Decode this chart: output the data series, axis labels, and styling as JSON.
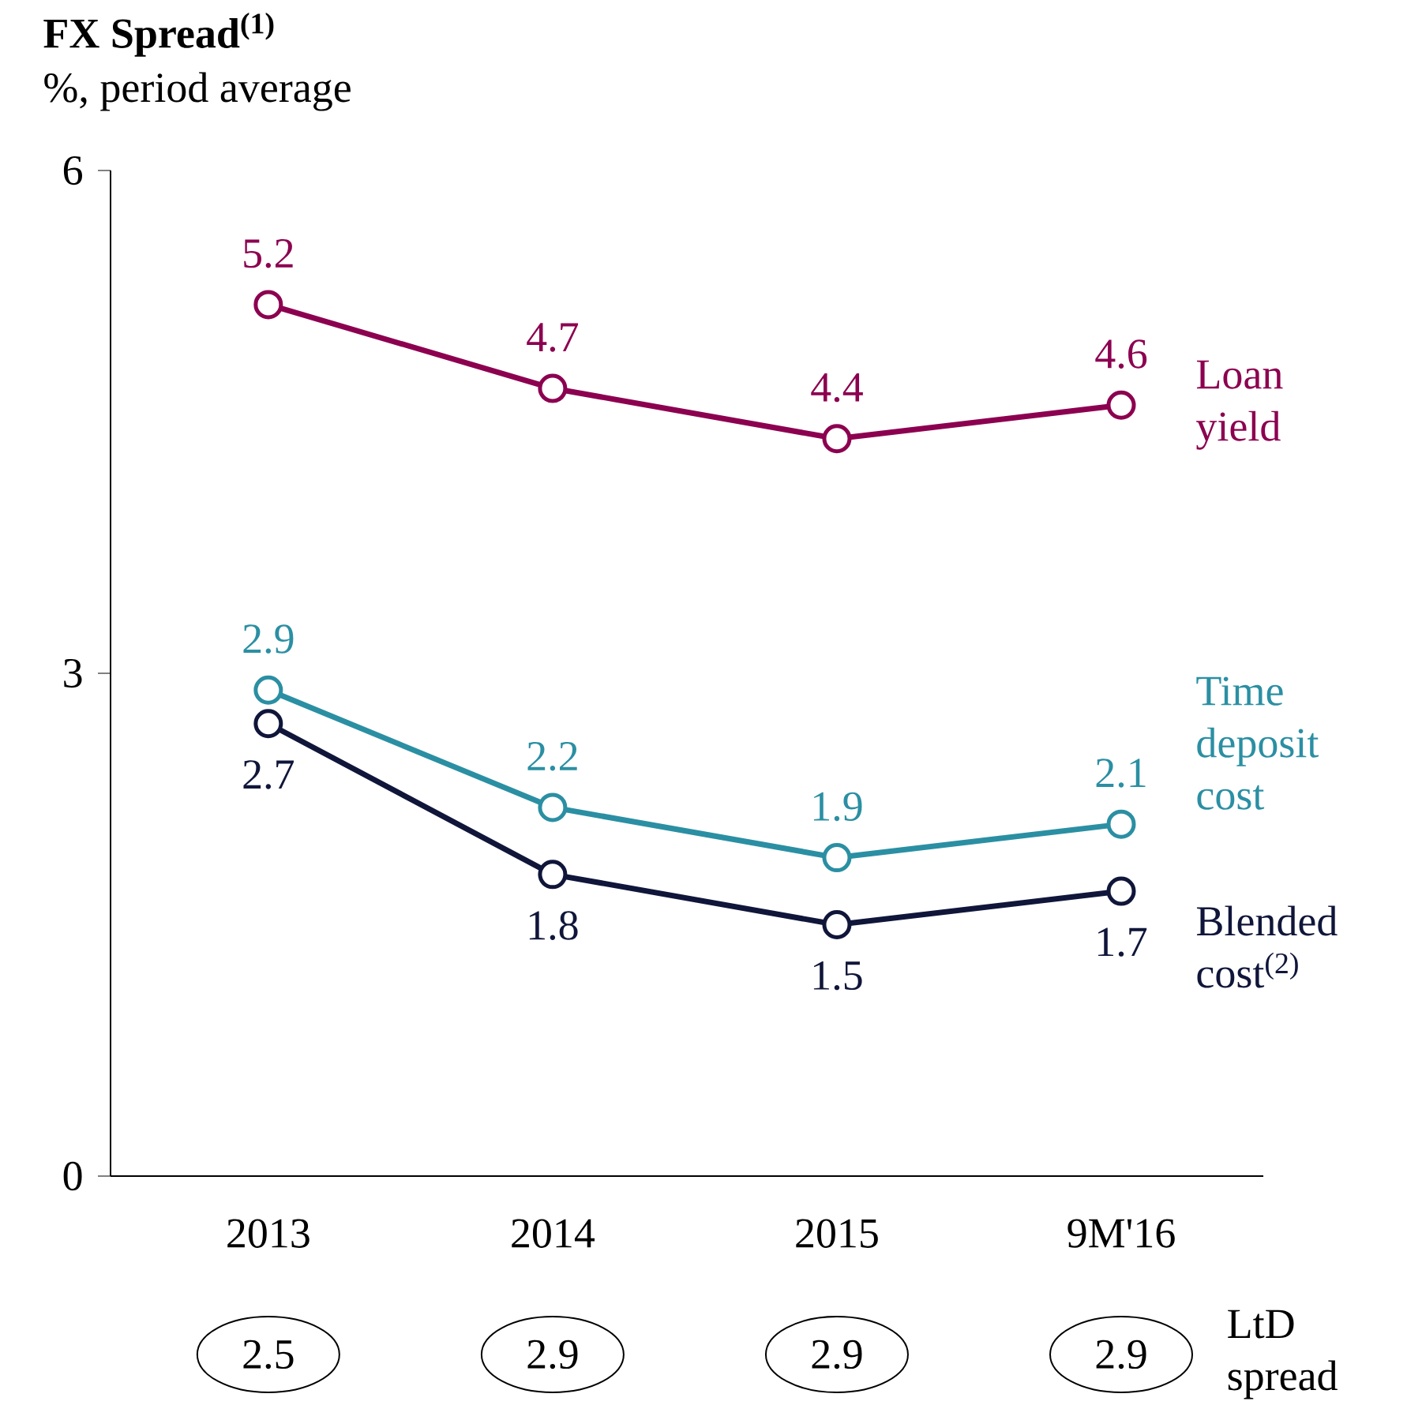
{
  "chart_data": {
    "type": "line",
    "title": "FX Spread$^{(1)}$",
    "subtitle": "%, period average",
    "categories": [
      "2013",
      "2014",
      "2015",
      "9M'16"
    ],
    "series": [
      {
        "name": "Loan yield",
        "color": "#8c0050",
        "values": [
          5.2,
          4.7,
          4.4,
          4.6
        ]
      },
      {
        "name": "Time deposit cost",
        "color": "#2b8fa3",
        "values": [
          2.9,
          2.2,
          1.9,
          2.1
        ]
      },
      {
        "name": "Blended cost$^{(2)}$",
        "color": "#10163a",
        "values": [
          2.7,
          1.8,
          1.5,
          1.7
        ]
      }
    ],
    "ylim": [
      0,
      6
    ],
    "yticks": [
      0,
      3,
      6
    ],
    "grid": false,
    "marker": "circle",
    "line_style": "solid",
    "data_labels": true,
    "annotations": [
      "LtD spread",
      "2.5",
      "2.9",
      "2.9",
      "2.9"
    ]
  }
}
